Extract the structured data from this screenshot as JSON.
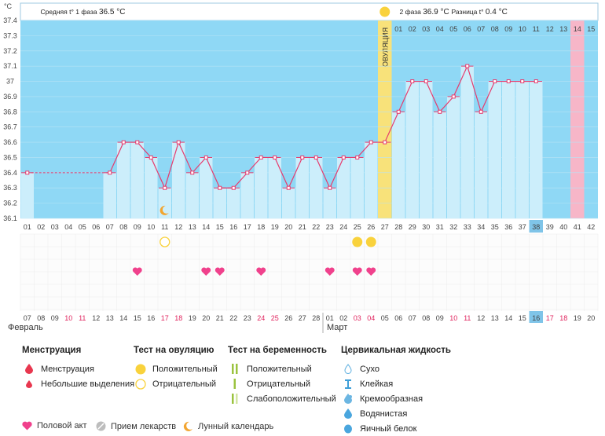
{
  "chart_data": {
    "type": "line",
    "unit": "°C",
    "ylim": [
      36.1,
      37.4
    ],
    "y_ticks": [
      "37.4",
      "37.3",
      "37.2",
      "37.1",
      "37",
      "36.9",
      "36.8",
      "36.7",
      "36.6",
      "36.5",
      "36.4",
      "36.3",
      "36.2",
      "36.1"
    ],
    "cycle_days": [
      "01",
      "02",
      "03",
      "04",
      "05",
      "06",
      "07",
      "08",
      "09",
      "10",
      "11",
      "12",
      "13",
      "14",
      "15",
      "16",
      "17",
      "18",
      "19",
      "20",
      "21",
      "22",
      "23",
      "24",
      "25",
      "26",
      "27",
      "28",
      "29",
      "30",
      "31",
      "32",
      "33",
      "34",
      "35",
      "36",
      "37",
      "38",
      "39",
      "40",
      "41",
      "42"
    ],
    "temperatures": [
      36.4,
      null,
      null,
      null,
      null,
      null,
      36.4,
      36.6,
      36.6,
      36.5,
      36.3,
      36.6,
      36.4,
      36.5,
      36.3,
      36.3,
      36.4,
      36.5,
      36.5,
      36.3,
      36.5,
      36.5,
      36.3,
      36.5,
      36.5,
      36.6,
      36.6,
      36.8,
      37.0,
      37.0,
      36.8,
      36.9,
      37.1,
      36.8,
      37.0,
      37.0,
      37.0,
      37.0,
      null,
      null,
      null,
      null
    ],
    "highlight_day": "38",
    "ovulation_day": "27",
    "ovulation_label": "ОВУЛЯЦИЯ",
    "phase1": {
      "label": "Средняя t° 1 фаза",
      "value": "36.5 °C"
    },
    "phase2": {
      "label": "2 фаза",
      "value": "36.9 °C",
      "diff_label": "Разница t°",
      "diff_value": "0.4 °C"
    },
    "phase2_days": [
      "01",
      "02",
      "03",
      "04",
      "05",
      "06",
      "07",
      "08",
      "09",
      "10",
      "11",
      "12",
      "13",
      "14",
      "15"
    ],
    "phase2_pink_day": "14",
    "dates": [
      "07",
      "08",
      "09",
      "10",
      "11",
      "12",
      "13",
      "14",
      "15",
      "16",
      "17",
      "18",
      "19",
      "20",
      "21",
      "22",
      "23",
      "24",
      "25",
      "26",
      "27",
      "28",
      "01",
      "02",
      "03",
      "04",
      "05",
      "06",
      "07",
      "08",
      "09",
      "10",
      "11",
      "12",
      "13",
      "14",
      "15",
      "16",
      "17",
      "18",
      "19",
      "20"
    ],
    "weekend_dates_idx": [
      3,
      4,
      10,
      11,
      17,
      18,
      24,
      25,
      31,
      32,
      38,
      39
    ],
    "highlight_date": "16",
    "months": [
      "Февраль",
      "Март"
    ],
    "moon_day": "11",
    "ovulation_test_positive_days": [
      "25",
      "26"
    ],
    "ovulation_test_negative_days": [
      "11"
    ],
    "intercourse_days": [
      "09",
      "14",
      "15",
      "18",
      "23",
      "25",
      "26"
    ]
  },
  "legend": {
    "menstruation": {
      "title": "Менструация",
      "items": [
        "Менструация",
        "Небольшие выделения"
      ]
    },
    "ovulation_test": {
      "title": "Тест на овуляцию",
      "items": [
        "Положительный",
        "Отрицательный"
      ]
    },
    "pregnancy_test": {
      "title": "Тест на беременность",
      "items": [
        "Положительный",
        "Отрицательный",
        "Слабоположительный"
      ]
    },
    "cervical_fluid": {
      "title": "Цервикальная жидкость",
      "items": [
        "Сухо",
        "Клейкая",
        "Кремообразная",
        "Водянистая",
        "Яичный белок"
      ]
    },
    "bottom": [
      "Половой акт",
      "Прием лекарств",
      "Лунный календарь"
    ]
  },
  "colors": {
    "sky": "#8fd8f5",
    "column": "#cceefb",
    "line": "#e63c6e",
    "ovulation": "#f8e27a",
    "pink": "#f7b6c8",
    "highlight": "#7fc4e8",
    "heart": "#f0418c",
    "sun": "#f9d23c",
    "moon": "#f2a530",
    "drop": "#e8374f",
    "bar_green": "#9bc33f"
  }
}
